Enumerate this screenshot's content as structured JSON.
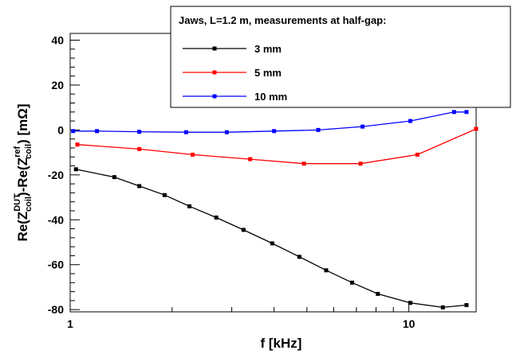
{
  "chart_data": {
    "type": "line",
    "xscale": "log",
    "xlim": [
      1,
      15.8
    ],
    "ylim": [
      -81,
      43
    ],
    "xlabel": "f [kHz]",
    "ylabel": {
      "prefix": "Re(Z",
      "sup1": "DUT",
      "sub1": "coil",
      "middle": ")-Re(Z",
      "sup2": "ref",
      "sub2": "coil",
      "suffix": ") [mΩ]"
    },
    "x_ticks": [
      {
        "value": 1,
        "label": "1"
      },
      {
        "value": 10,
        "label": "10"
      }
    ],
    "y_ticks": [
      {
        "value": 40,
        "label": "40"
      },
      {
        "value": 20,
        "label": "20"
      },
      {
        "value": 0,
        "label": "0"
      },
      {
        "value": -20,
        "label": "-20"
      },
      {
        "value": -40,
        "label": "-40"
      },
      {
        "value": -60,
        "label": "-60"
      },
      {
        "value": -80,
        "label": "-80"
      }
    ],
    "legend": {
      "title": "Jaws, L=1.2 m, measurements at half-gap:",
      "position": "top-right"
    },
    "series": [
      {
        "name": "3 mm",
        "color": "#000000",
        "x": [
          1.04,
          1.35,
          1.6,
          1.9,
          2.25,
          2.7,
          3.25,
          3.95,
          4.75,
          5.7,
          6.8,
          8.1,
          10.1,
          12.6,
          14.8
        ],
        "y": [
          -17.5,
          -21,
          -25,
          -29,
          -34,
          -39,
          -44.5,
          -50.5,
          -56.5,
          -62.5,
          -68,
          -73,
          -77,
          -79,
          -78
        ]
      },
      {
        "name": "5 mm",
        "color": "#ff0000",
        "x": [
          1.05,
          1.6,
          2.3,
          3.4,
          4.9,
          7.2,
          10.6,
          15.8
        ],
        "y": [
          -6.5,
          -8.5,
          -11,
          -13,
          -15,
          -15,
          -11,
          0.5
        ]
      },
      {
        "name": "10 mm",
        "color": "#0000ff",
        "x": [
          1.02,
          1.2,
          1.6,
          2.2,
          2.9,
          4.0,
          5.4,
          7.3,
          10.1,
          13.6,
          14.8
        ],
        "y": [
          -0.5,
          -0.5,
          -0.8,
          -1,
          -1,
          -0.5,
          0,
          1.5,
          4,
          8,
          8
        ]
      }
    ]
  }
}
